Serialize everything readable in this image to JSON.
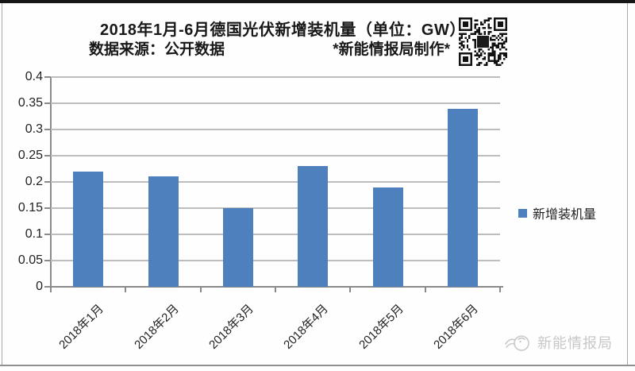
{
  "header": {
    "title": "2018年1月-6月德国光伏新增装机量（单位：GW）",
    "source": "数据来源：公开数据",
    "credit": "*新能情报局制作*"
  },
  "chart_data": {
    "type": "bar",
    "title": "2018年1月-6月德国光伏新增装机量（单位：GW）",
    "unit": "GW",
    "categories": [
      "2018年1月",
      "2018年2月",
      "2018年3月",
      "2018年4月",
      "2018年5月",
      "2018年6月"
    ],
    "series": [
      {
        "name": "新增装机量",
        "values": [
          0.22,
          0.21,
          0.15,
          0.23,
          0.19,
          0.34
        ]
      }
    ],
    "xlabel": "",
    "ylabel": "",
    "ylim": [
      0,
      0.4
    ],
    "ytick_step": 0.05,
    "ytick_labels": [
      "0",
      "0.05",
      "0.1",
      "0.15",
      "0.2",
      "0.25",
      "0.3",
      "0.35",
      "0.4"
    ],
    "grid": true,
    "legend_position": "right",
    "bar_color": "#4D80BD"
  },
  "legend": {
    "items": [
      {
        "label": "新增装机量",
        "color": "#4D80BD"
      }
    ]
  },
  "footer": {
    "brand": "新能情报局"
  },
  "icons": {
    "qr": "qr-code",
    "brand_logo": "doodle-bird-icon"
  },
  "colors": {
    "accent_blue": "#4D80BD",
    "gridline": "#BDBDBD",
    "axis": "#8A8A8A",
    "watermark_gray": "#C7C7C7"
  }
}
